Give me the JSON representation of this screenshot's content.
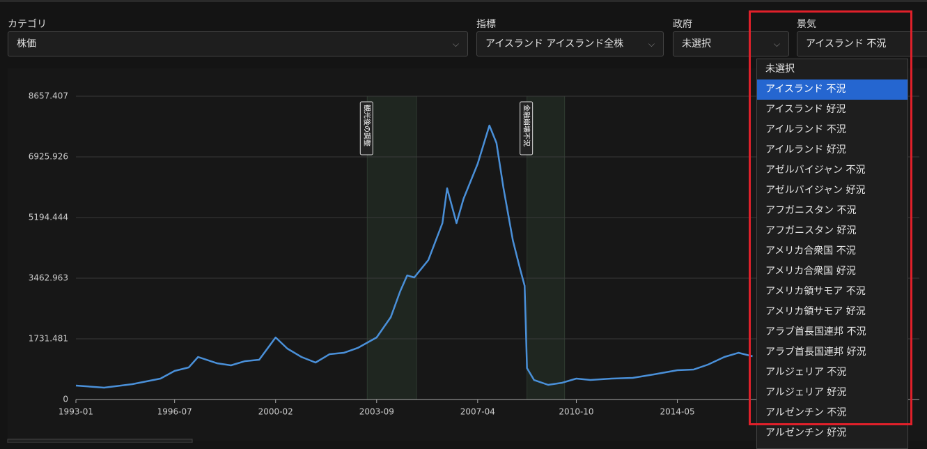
{
  "filters": [
    {
      "label": "カテゴリ",
      "value": "株価"
    },
    {
      "label": "指標",
      "value": "アイスランド アイスランド全株"
    },
    {
      "label": "政府",
      "value": "未選択"
    },
    {
      "label": "景気",
      "value": "アイスランド 不況"
    }
  ],
  "dropdown": {
    "selected": 1,
    "options": [
      "未選択",
      "アイスランド 不況",
      "アイスランド 好況",
      "アイルランド 不況",
      "アイルランド 好況",
      "アゼルバイジャン 不況",
      "アゼルバイジャン 好況",
      "アフガニスタン 不況",
      "アフガニスタン 好況",
      "アメリカ合衆国 不況",
      "アメリカ合衆国 好況",
      "アメリカ領サモア 不況",
      "アメリカ領サモア 好況",
      "アラブ首長国連邦 不況",
      "アラブ首長国連邦 好況",
      "アルジェリア 不況",
      "アルジェリア 好況",
      "アルゼンチン 不況",
      "アルゼンチン 好況"
    ]
  },
  "chart_data": {
    "type": "line",
    "color": "#4a90d9",
    "grid": true,
    "x": [
      "1993-01",
      "1994-01",
      "1995-01",
      "1996-01",
      "1996-07",
      "1997-01",
      "1997-05",
      "1998-01",
      "1998-07",
      "1999-01",
      "1999-07",
      "2000-02",
      "2000-07",
      "2001-01",
      "2001-07",
      "2002-01",
      "2002-07",
      "2003-01",
      "2003-09",
      "2004-03",
      "2004-07",
      "2004-10",
      "2005-01",
      "2005-07",
      "2006-01",
      "2006-03",
      "2006-07",
      "2006-10",
      "2007-04",
      "2007-09",
      "2007-12",
      "2008-03",
      "2008-07",
      "2008-10",
      "2008-12",
      "2009-01",
      "2009-04",
      "2009-10",
      "2010-04",
      "2010-10",
      "2011-04",
      "2012-01",
      "2012-10",
      "2013-07",
      "2014-05",
      "2014-12",
      "2015-06",
      "2016-01",
      "2016-07",
      "2017-01"
    ],
    "values": [
      398,
      338,
      438,
      597,
      816,
      915,
      1214,
      1035,
      975,
      1095,
      1134,
      1771,
      1453,
      1214,
      1055,
      1294,
      1333,
      1473,
      1771,
      2348,
      3085,
      3543,
      3483,
      3980,
      5035,
      6030,
      5035,
      5732,
      6727,
      7821,
      7324,
      6030,
      4538,
      3742,
      3244,
      896,
      557,
      418,
      478,
      597,
      557,
      597,
      617,
      716,
      836,
      856,
      995,
      1214,
      1333,
      1234
    ],
    "xlim": [
      "1993-01",
      "2022-12"
    ],
    "xticks": [
      "1993-01",
      "1996-07",
      "2000-02",
      "2003-09",
      "2007-04",
      "2010-10",
      "2014-05"
    ],
    "ylim": [
      0,
      8657.407
    ],
    "yticks": [
      0,
      1731.481,
      3462.963,
      5194.444,
      6925.926,
      8657.407
    ],
    "regions": [
      {
        "label": "観光後の調整",
        "start": "2003-05",
        "end": "2005-02"
      },
      {
        "label": "金融崩壊不況",
        "start": "2009-01",
        "end": "2010-05"
      }
    ]
  }
}
